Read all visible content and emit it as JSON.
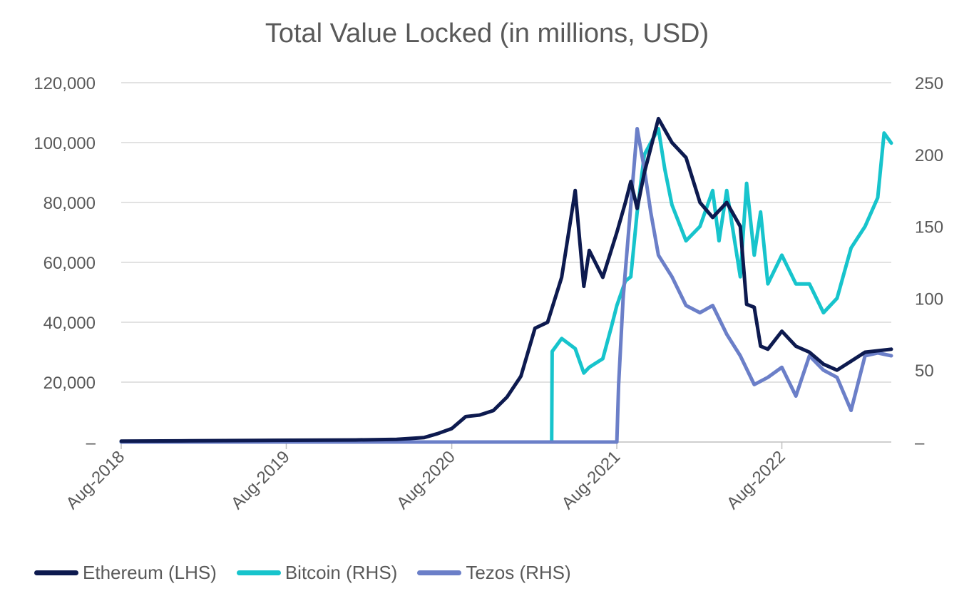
{
  "chart_data": {
    "type": "line",
    "title": "Total Value Locked (in millions, USD)",
    "y_left": {
      "ticks": [
        0,
        20000,
        40000,
        60000,
        80000,
        100000,
        120000
      ],
      "tick_labels": [
        "–",
        "20,000",
        "40,000",
        "60,000",
        "80,000",
        "100,000",
        "120,000"
      ],
      "range": [
        0,
        120000
      ]
    },
    "y_right": {
      "ticks": [
        0,
        50,
        100,
        150,
        200,
        250
      ],
      "tick_labels": [
        "–",
        "50",
        "100",
        "150",
        "200",
        "250"
      ],
      "range": [
        0,
        250
      ]
    },
    "x_axis": {
      "range": [
        "2018-08-01",
        "2023-03-31"
      ],
      "ticks": [
        "2018-08-01",
        "2019-08-01",
        "2020-08-01",
        "2021-08-01",
        "2022-08-01"
      ],
      "tick_labels": [
        "Aug-2018",
        "Aug-2019",
        "Aug-2020",
        "Aug-2021",
        "Aug-2022"
      ]
    },
    "series": [
      {
        "name": "Ethereum (LHS)",
        "axis": "left",
        "color": "#0d1a4f",
        "points": [
          [
            "2018-08-01",
            300
          ],
          [
            "2019-01-01",
            400
          ],
          [
            "2019-06-01",
            550
          ],
          [
            "2020-01-01",
            700
          ],
          [
            "2020-04-01",
            900
          ],
          [
            "2020-06-01",
            1500
          ],
          [
            "2020-07-01",
            2800
          ],
          [
            "2020-08-01",
            4500
          ],
          [
            "2020-09-01",
            8500
          ],
          [
            "2020-10-01",
            9000
          ],
          [
            "2020-11-01",
            10500
          ],
          [
            "2020-12-01",
            15000
          ],
          [
            "2021-01-01",
            22000
          ],
          [
            "2021-02-01",
            38000
          ],
          [
            "2021-03-01",
            40000
          ],
          [
            "2021-04-01",
            55000
          ],
          [
            "2021-05-01",
            84000
          ],
          [
            "2021-05-20",
            52000
          ],
          [
            "2021-06-01",
            64000
          ],
          [
            "2021-07-01",
            55000
          ],
          [
            "2021-08-01",
            70000
          ],
          [
            "2021-08-20",
            80000
          ],
          [
            "2021-09-01",
            87000
          ],
          [
            "2021-09-15",
            78000
          ],
          [
            "2021-10-01",
            90000
          ],
          [
            "2021-11-01",
            108000
          ],
          [
            "2021-12-01",
            100000
          ],
          [
            "2022-01-01",
            95000
          ],
          [
            "2022-02-01",
            80000
          ],
          [
            "2022-03-01",
            75000
          ],
          [
            "2022-04-01",
            80000
          ],
          [
            "2022-05-01",
            72000
          ],
          [
            "2022-05-15",
            46000
          ],
          [
            "2022-06-01",
            45000
          ],
          [
            "2022-06-15",
            32000
          ],
          [
            "2022-07-01",
            31000
          ],
          [
            "2022-08-01",
            37000
          ],
          [
            "2022-09-01",
            32000
          ],
          [
            "2022-10-01",
            30000
          ],
          [
            "2022-11-01",
            26000
          ],
          [
            "2022-12-01",
            24000
          ],
          [
            "2023-01-01",
            27000
          ],
          [
            "2023-02-01",
            30000
          ],
          [
            "2023-03-31",
            31000
          ]
        ]
      },
      {
        "name": "Bitcoin (RHS)",
        "axis": "right",
        "color": "#17c4cc",
        "points": [
          [
            "2018-08-01",
            0
          ],
          [
            "2021-03-10",
            0
          ],
          [
            "2021-03-11",
            63
          ],
          [
            "2021-04-01",
            72
          ],
          [
            "2021-05-01",
            65
          ],
          [
            "2021-05-20",
            48
          ],
          [
            "2021-06-01",
            52
          ],
          [
            "2021-07-01",
            58
          ],
          [
            "2021-07-20",
            80
          ],
          [
            "2021-08-01",
            95
          ],
          [
            "2021-08-20",
            112
          ],
          [
            "2021-09-01",
            115
          ],
          [
            "2021-09-15",
            160
          ],
          [
            "2021-10-01",
            200
          ],
          [
            "2021-11-01",
            218
          ],
          [
            "2021-11-15",
            190
          ],
          [
            "2021-12-01",
            165
          ],
          [
            "2022-01-01",
            140
          ],
          [
            "2022-02-01",
            150
          ],
          [
            "2022-03-01",
            175
          ],
          [
            "2022-03-15",
            140
          ],
          [
            "2022-04-01",
            175
          ],
          [
            "2022-05-01",
            115
          ],
          [
            "2022-05-15",
            180
          ],
          [
            "2022-06-01",
            130
          ],
          [
            "2022-06-15",
            160
          ],
          [
            "2022-07-01",
            110
          ],
          [
            "2022-08-01",
            130
          ],
          [
            "2022-09-01",
            110
          ],
          [
            "2022-10-01",
            110
          ],
          [
            "2022-11-01",
            90
          ],
          [
            "2022-12-01",
            100
          ],
          [
            "2023-01-01",
            135
          ],
          [
            "2023-02-01",
            150
          ],
          [
            "2023-03-01",
            170
          ],
          [
            "2023-03-15",
            215
          ],
          [
            "2023-03-31",
            208
          ]
        ]
      },
      {
        "name": "Tezos (RHS)",
        "axis": "right",
        "color": "#6b7fc8",
        "points": [
          [
            "2018-08-01",
            0
          ],
          [
            "2021-08-01",
            0
          ],
          [
            "2021-08-05",
            40
          ],
          [
            "2021-08-15",
            100
          ],
          [
            "2021-09-01",
            165
          ],
          [
            "2021-09-15",
            218
          ],
          [
            "2021-10-01",
            190
          ],
          [
            "2021-10-15",
            160
          ],
          [
            "2021-11-01",
            130
          ],
          [
            "2021-12-01",
            115
          ],
          [
            "2022-01-01",
            95
          ],
          [
            "2022-02-01",
            90
          ],
          [
            "2022-03-01",
            95
          ],
          [
            "2022-04-01",
            75
          ],
          [
            "2022-05-01",
            60
          ],
          [
            "2022-06-01",
            40
          ],
          [
            "2022-07-01",
            45
          ],
          [
            "2022-08-01",
            52
          ],
          [
            "2022-09-01",
            32
          ],
          [
            "2022-10-01",
            60
          ],
          [
            "2022-11-01",
            50
          ],
          [
            "2022-12-01",
            45
          ],
          [
            "2023-01-01",
            22
          ],
          [
            "2023-02-01",
            60
          ],
          [
            "2023-03-01",
            62
          ],
          [
            "2023-03-31",
            60
          ]
        ]
      }
    ]
  }
}
